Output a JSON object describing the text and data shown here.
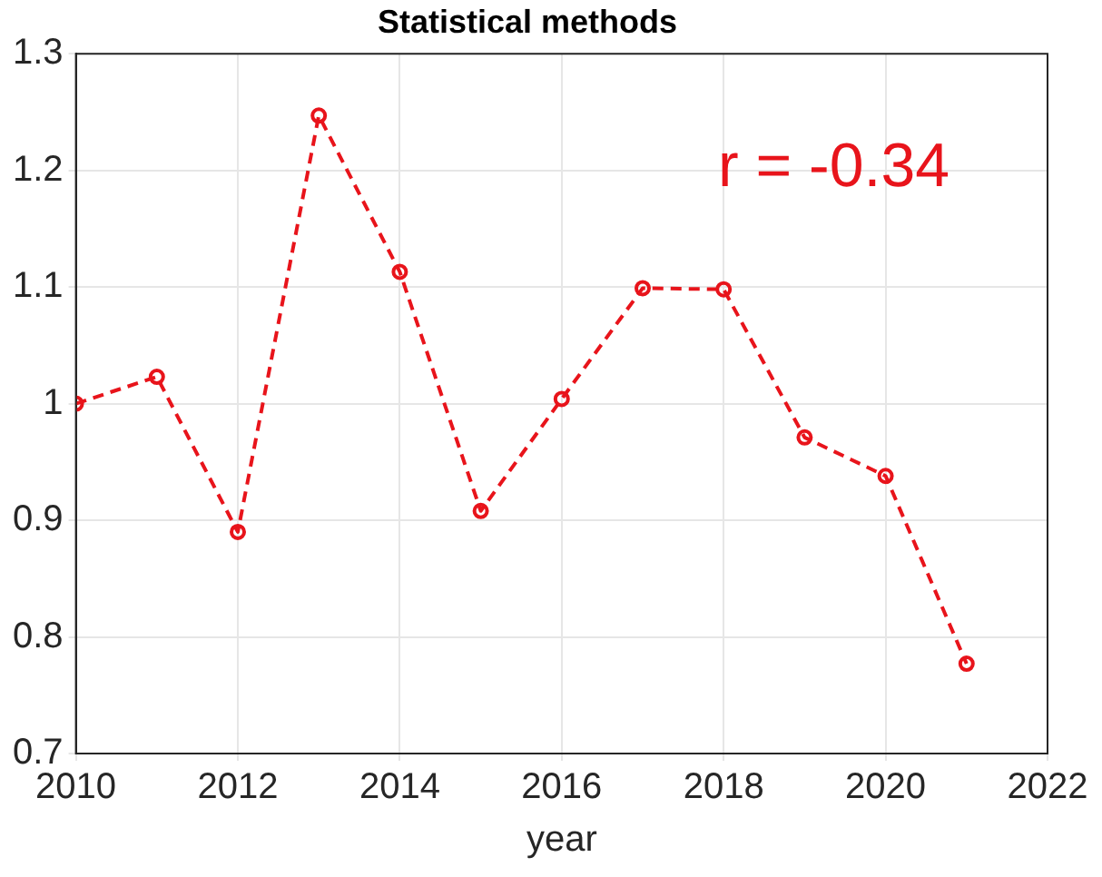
{
  "chart_data": {
    "type": "line",
    "title": "Statistical methods",
    "xlabel": "year",
    "x": [
      2010,
      2011,
      2012,
      2013,
      2014,
      2015,
      2016,
      2017,
      2018,
      2019,
      2020,
      2021
    ],
    "series": [
      {
        "color": "#e8141b",
        "values": [
          1.0,
          1.023,
          0.89,
          1.247,
          1.113,
          0.908,
          1.004,
          1.099,
          1.098,
          0.971,
          0.938,
          0.777
        ]
      }
    ],
    "xlim": [
      2010,
      2022
    ],
    "xticks": [
      2010,
      2012,
      2014,
      2016,
      2018,
      2020,
      2022
    ],
    "ylim": [
      0.7,
      1.3
    ],
    "yticks": [
      0.7,
      0.8,
      0.9,
      1,
      1.1,
      1.2,
      1.3
    ],
    "annotations": [
      "r = -0.34"
    ],
    "grid": true,
    "marker": "circle",
    "line_style": "dashed",
    "legend": false
  }
}
